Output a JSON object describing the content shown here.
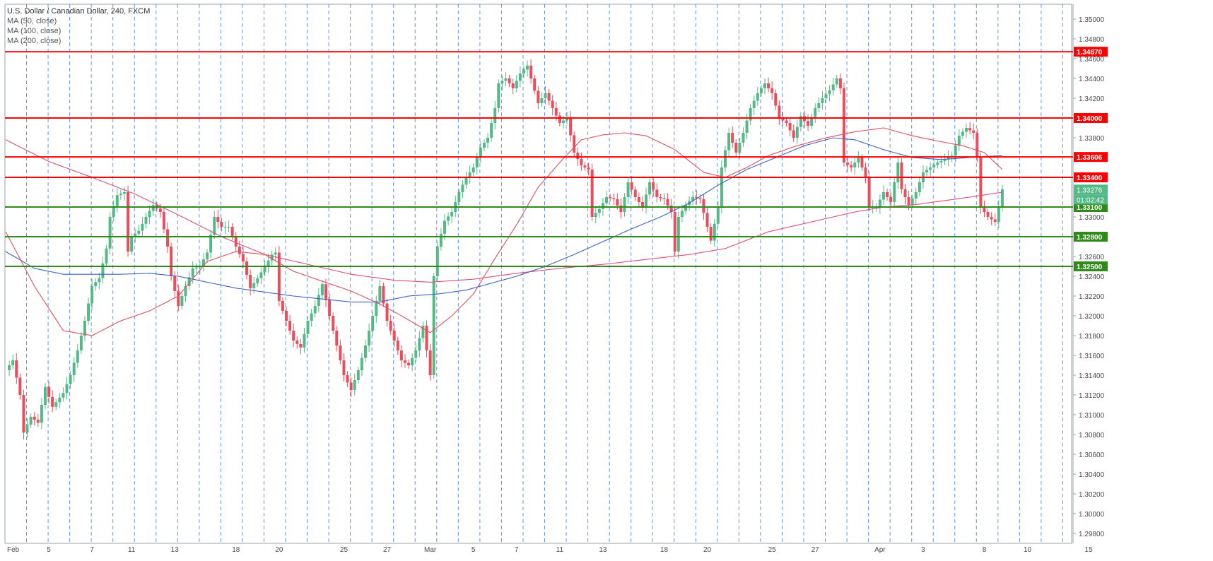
{
  "legend": {
    "title": "U.S. Dollar / Canadian Dollar, 240, FXCM",
    "ma50": "MA (50, close)",
    "ma100": "MA (100, close)",
    "ma200": "MA (200, close)"
  },
  "colors": {
    "up": "#53b987",
    "down": "#eb4d5c",
    "resistance": "#ff0000",
    "support": "#2e8b1a",
    "ma50": "#e0505e",
    "ma100": "#3a63c9",
    "ma200": "#e04b7a",
    "grid_vertical": "#3d7bd9",
    "axis_text": "#4a4a4a"
  },
  "chart_data": {
    "type": "candlestick",
    "symbol": "USDCAD",
    "timeframe": "240",
    "ylim": [
      1.297,
      1.3515
    ],
    "y_ticks": [
      "1.35000",
      "1.34800",
      "1.34600",
      "1.34400",
      "1.34200",
      "1.34000",
      "1.33800",
      "1.33600",
      "1.33400",
      "1.33200",
      "1.33000",
      "1.32800",
      "1.32600",
      "1.32400",
      "1.32200",
      "1.32000",
      "1.31800",
      "1.31600",
      "1.31400",
      "1.31200",
      "1.31000",
      "1.30800",
      "1.30600",
      "1.30400",
      "1.30200",
      "1.30000",
      "1.29800"
    ],
    "x_ticks": [
      {
        "label": "Feb",
        "bar": 0
      },
      {
        "label": "5",
        "bar": 12
      },
      {
        "label": "7",
        "bar": 24
      },
      {
        "label": "11",
        "bar": 35
      },
      {
        "label": "13",
        "bar": 47
      },
      {
        "label": "18",
        "bar": 64
      },
      {
        "label": "20",
        "bar": 76
      },
      {
        "label": "25",
        "bar": 94
      },
      {
        "label": "27",
        "bar": 106
      },
      {
        "label": "Mar",
        "bar": 118
      },
      {
        "label": "5",
        "bar": 130
      },
      {
        "label": "7",
        "bar": 142
      },
      {
        "label": "11",
        "bar": 154
      },
      {
        "label": "13",
        "bar": 166
      },
      {
        "label": "18",
        "bar": 183
      },
      {
        "label": "20",
        "bar": 195
      },
      {
        "label": "25",
        "bar": 213
      },
      {
        "label": "27",
        "bar": 225
      },
      {
        "label": "Apr",
        "bar": 243
      },
      {
        "label": "3",
        "bar": 255
      },
      {
        "label": "8",
        "bar": 272
      },
      {
        "label": "10",
        "bar": 284
      },
      {
        "label": "15",
        "bar": 301
      }
    ],
    "horizontal_levels": [
      {
        "value": 1.3467,
        "label": "1.34670",
        "kind": "resistance"
      },
      {
        "value": 1.34,
        "label": "1.34000",
        "kind": "resistance"
      },
      {
        "value": 1.33606,
        "label": "1.33606",
        "kind": "resistance"
      },
      {
        "value": 1.334,
        "label": "1.33400",
        "kind": "resistance"
      },
      {
        "value": 1.331,
        "label": "1.33100",
        "kind": "support"
      },
      {
        "value": 1.328,
        "label": "1.32800",
        "kind": "support"
      },
      {
        "value": 1.325,
        "label": "1.32500",
        "kind": "support"
      }
    ],
    "last_price": {
      "value": 1.33276,
      "label": "1.33276",
      "countdown": "01:02:42"
    },
    "close_anchors": [
      [
        0,
        1.3145
      ],
      [
        2,
        1.3155
      ],
      [
        4,
        1.312
      ],
      [
        5,
        1.3082
      ],
      [
        7,
        1.3098
      ],
      [
        9,
        1.3092
      ],
      [
        11,
        1.3128
      ],
      [
        13,
        1.3108
      ],
      [
        16,
        1.3122
      ],
      [
        18,
        1.314
      ],
      [
        20,
        1.3165
      ],
      [
        22,
        1.3195
      ],
      [
        24,
        1.323
      ],
      [
        26,
        1.3238
      ],
      [
        28,
        1.3268
      ],
      [
        29,
        1.33
      ],
      [
        31,
        1.3322
      ],
      [
        33,
        1.3325
      ],
      [
        34,
        1.3265
      ],
      [
        35,
        1.328
      ],
      [
        37,
        1.3286
      ],
      [
        39,
        1.33
      ],
      [
        41,
        1.3312
      ],
      [
        43,
        1.3305
      ],
      [
        45,
        1.327
      ],
      [
        46,
        1.324
      ],
      [
        48,
        1.321
      ],
      [
        50,
        1.323
      ],
      [
        52,
        1.3248
      ],
      [
        54,
        1.325
      ],
      [
        56,
        1.3264
      ],
      [
        58,
        1.33
      ],
      [
        60,
        1.329
      ],
      [
        62,
        1.329
      ],
      [
        64,
        1.327
      ],
      [
        66,
        1.3255
      ],
      [
        68,
        1.3228
      ],
      [
        70,
        1.3238
      ],
      [
        72,
        1.325
      ],
      [
        74,
        1.3262
      ],
      [
        75,
        1.3264
      ],
      [
        76,
        1.3215
      ],
      [
        78,
        1.3195
      ],
      [
        80,
        1.3175
      ],
      [
        82,
        1.3168
      ],
      [
        84,
        1.3195
      ],
      [
        86,
        1.321
      ],
      [
        88,
        1.3232
      ],
      [
        90,
        1.32
      ],
      [
        92,
        1.317
      ],
      [
        94,
        1.314
      ],
      [
        96,
        1.3125
      ],
      [
        98,
        1.3145
      ],
      [
        100,
        1.317
      ],
      [
        102,
        1.32
      ],
      [
        104,
        1.323
      ],
      [
        106,
        1.3195
      ],
      [
        108,
        1.3175
      ],
      [
        110,
        1.3155
      ],
      [
        112,
        1.315
      ],
      [
        114,
        1.3165
      ],
      [
        116,
        1.319
      ],
      [
        117,
        1.3165
      ],
      [
        118,
        1.314
      ],
      [
        119,
        1.324
      ],
      [
        120,
        1.327
      ],
      [
        122,
        1.3296
      ],
      [
        124,
        1.3305
      ],
      [
        126,
        1.3325
      ],
      [
        128,
        1.334
      ],
      [
        130,
        1.335
      ],
      [
        132,
        1.337
      ],
      [
        134,
        1.338
      ],
      [
        136,
        1.341
      ],
      [
        137,
        1.3435
      ],
      [
        139,
        1.344
      ],
      [
        141,
        1.343
      ],
      [
        143,
        1.3445
      ],
      [
        145,
        1.3453
      ],
      [
        146,
        1.344
      ],
      [
        148,
        1.3415
      ],
      [
        150,
        1.3425
      ],
      [
        152,
        1.341
      ],
      [
        154,
        1.3395
      ],
      [
        156,
        1.34
      ],
      [
        158,
        1.3365
      ],
      [
        160,
        1.3352
      ],
      [
        162,
        1.3348
      ],
      [
        163,
        1.33
      ],
      [
        165,
        1.3308
      ],
      [
        167,
        1.332
      ],
      [
        169,
        1.3318
      ],
      [
        171,
        1.3305
      ],
      [
        173,
        1.3335
      ],
      [
        175,
        1.332
      ],
      [
        177,
        1.331
      ],
      [
        179,
        1.3335
      ],
      [
        181,
        1.332
      ],
      [
        183,
        1.3318
      ],
      [
        185,
        1.3305
      ],
      [
        186,
        1.3265
      ],
      [
        187,
        1.33
      ],
      [
        189,
        1.3312
      ],
      [
        191,
        1.332
      ],
      [
        193,
        1.3318
      ],
      [
        195,
        1.329
      ],
      [
        196,
        1.3276
      ],
      [
        198,
        1.331
      ],
      [
        199,
        1.335
      ],
      [
        201,
        1.3385
      ],
      [
        203,
        1.3365
      ],
      [
        205,
        1.3385
      ],
      [
        207,
        1.341
      ],
      [
        209,
        1.3425
      ],
      [
        211,
        1.3435
      ],
      [
        213,
        1.3425
      ],
      [
        215,
        1.34
      ],
      [
        217,
        1.3395
      ],
      [
        219,
        1.338
      ],
      [
        221,
        1.3402
      ],
      [
        223,
        1.3392
      ],
      [
        225,
        1.341
      ],
      [
        227,
        1.342
      ],
      [
        229,
        1.3428
      ],
      [
        231,
        1.344
      ],
      [
        232,
        1.343
      ],
      [
        233,
        1.3355
      ],
      [
        235,
        1.335
      ],
      [
        237,
        1.336
      ],
      [
        239,
        1.334
      ],
      [
        240,
        1.331
      ],
      [
        242,
        1.331
      ],
      [
        244,
        1.3325
      ],
      [
        246,
        1.3315
      ],
      [
        248,
        1.3355
      ],
      [
        249,
        1.3328
      ],
      [
        251,
        1.3312
      ],
      [
        253,
        1.3325
      ],
      [
        255,
        1.3345
      ],
      [
        257,
        1.335
      ],
      [
        259,
        1.3355
      ],
      [
        261,
        1.3358
      ],
      [
        263,
        1.3362
      ],
      [
        265,
        1.3382
      ],
      [
        267,
        1.339
      ],
      [
        269,
        1.3385
      ],
      [
        270,
        1.336
      ],
      [
        271,
        1.331
      ],
      [
        273,
        1.33
      ],
      [
        275,
        1.3295
      ],
      [
        276,
        1.331
      ],
      [
        277,
        1.3328
      ]
    ],
    "ma50_anchors": [
      [
        0,
        1.3285
      ],
      [
        8,
        1.323
      ],
      [
        16,
        1.3185
      ],
      [
        24,
        1.318
      ],
      [
        32,
        1.3195
      ],
      [
        40,
        1.3205
      ],
      [
        48,
        1.322
      ],
      [
        56,
        1.3255
      ],
      [
        64,
        1.3265
      ],
      [
        72,
        1.3262
      ],
      [
        80,
        1.3245
      ],
      [
        88,
        1.3235
      ],
      [
        96,
        1.3225
      ],
      [
        104,
        1.3212
      ],
      [
        110,
        1.32
      ],
      [
        118,
        1.3183
      ],
      [
        124,
        1.32
      ],
      [
        130,
        1.3222
      ],
      [
        136,
        1.3258
      ],
      [
        142,
        1.3292
      ],
      [
        148,
        1.333
      ],
      [
        154,
        1.3355
      ],
      [
        160,
        1.3378
      ],
      [
        166,
        1.3383
      ],
      [
        172,
        1.3385
      ],
      [
        178,
        1.3382
      ],
      [
        186,
        1.3368
      ],
      [
        194,
        1.3345
      ],
      [
        200,
        1.334
      ],
      [
        206,
        1.335
      ],
      [
        212,
        1.3362
      ],
      [
        220,
        1.3372
      ],
      [
        228,
        1.338
      ],
      [
        236,
        1.3386
      ],
      [
        244,
        1.339
      ],
      [
        252,
        1.3382
      ],
      [
        260,
        1.3376
      ],
      [
        266,
        1.3372
      ],
      [
        272,
        1.3365
      ],
      [
        277,
        1.3348
      ]
    ],
    "ma100_anchors": [
      [
        0,
        1.3265
      ],
      [
        8,
        1.3248
      ],
      [
        16,
        1.3242
      ],
      [
        24,
        1.3242
      ],
      [
        32,
        1.3242
      ],
      [
        40,
        1.3243
      ],
      [
        48,
        1.324
      ],
      [
        56,
        1.3234
      ],
      [
        64,
        1.3228
      ],
      [
        72,
        1.3224
      ],
      [
        80,
        1.322
      ],
      [
        88,
        1.3217
      ],
      [
        96,
        1.3214
      ],
      [
        104,
        1.3214
      ],
      [
        112,
        1.322
      ],
      [
        120,
        1.3222
      ],
      [
        128,
        1.3226
      ],
      [
        136,
        1.3234
      ],
      [
        142,
        1.324
      ],
      [
        150,
        1.325
      ],
      [
        158,
        1.3262
      ],
      [
        166,
        1.3275
      ],
      [
        174,
        1.3288
      ],
      [
        182,
        1.33
      ],
      [
        190,
        1.3314
      ],
      [
        198,
        1.3332
      ],
      [
        206,
        1.3348
      ],
      [
        214,
        1.336
      ],
      [
        222,
        1.3372
      ],
      [
        230,
        1.338
      ],
      [
        236,
        1.3378
      ],
      [
        244,
        1.3368
      ],
      [
        252,
        1.336
      ],
      [
        260,
        1.3358
      ],
      [
        268,
        1.336
      ],
      [
        277,
        1.3362
      ]
    ],
    "ma200_anchors": [
      [
        0,
        1.3378
      ],
      [
        12,
        1.3356
      ],
      [
        24,
        1.334
      ],
      [
        36,
        1.3323
      ],
      [
        48,
        1.3302
      ],
      [
        60,
        1.328
      ],
      [
        72,
        1.3262
      ],
      [
        84,
        1.3252
      ],
      [
        96,
        1.3242
      ],
      [
        108,
        1.3236
      ],
      [
        118,
        1.3234
      ],
      [
        130,
        1.3237
      ],
      [
        142,
        1.3243
      ],
      [
        154,
        1.3248
      ],
      [
        166,
        1.3252
      ],
      [
        178,
        1.3257
      ],
      [
        190,
        1.3262
      ],
      [
        200,
        1.3268
      ],
      [
        212,
        1.3285
      ],
      [
        224,
        1.3295
      ],
      [
        236,
        1.3305
      ],
      [
        244,
        1.331
      ],
      [
        252,
        1.3312
      ],
      [
        260,
        1.3316
      ],
      [
        268,
        1.332
      ],
      [
        277,
        1.3325
      ]
    ]
  }
}
